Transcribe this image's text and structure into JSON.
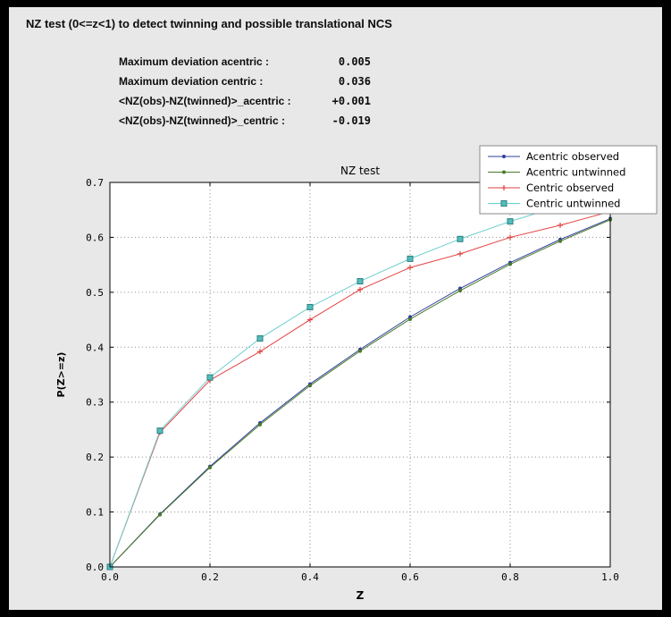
{
  "header": {
    "title": "NZ test (0<=z<1) to detect twinning and possible translational NCS"
  },
  "stats": {
    "rows": [
      {
        "label": "Maximum deviation acentric :",
        "value": "0.005"
      },
      {
        "label": "Maximum deviation centric :",
        "value": "0.036"
      },
      {
        "label": "<NZ(obs)-NZ(twinned)>_acentric :",
        "value": "+0.001"
      },
      {
        "label": "<NZ(obs)-NZ(twinned)>_centric :",
        "value": "-0.019"
      }
    ]
  },
  "chart_data": {
    "type": "line",
    "title": "NZ test",
    "xlabel": "Z",
    "ylabel": "P(Z>=z)",
    "xlim": [
      0.0,
      1.0
    ],
    "ylim": [
      0.0,
      0.7
    ],
    "xticks": [
      0.0,
      0.2,
      0.4,
      0.6,
      0.8,
      1.0
    ],
    "yticks": [
      0.0,
      0.1,
      0.2,
      0.3,
      0.4,
      0.5,
      0.6,
      0.7
    ],
    "grid": true,
    "grid_color": "#909090",
    "plot_bg": "#ffffff",
    "frame_color": "#000000",
    "legend_position": "top-right",
    "x": [
      0.0,
      0.1,
      0.2,
      0.3,
      0.4,
      0.5,
      0.6,
      0.7,
      0.8,
      0.9,
      1.0
    ],
    "series": [
      {
        "name": "Acentric observed",
        "color": "#30409a",
        "marker": "point",
        "values": [
          0.0,
          0.096,
          0.183,
          0.262,
          0.333,
          0.396,
          0.455,
          0.507,
          0.554,
          0.596,
          0.634
        ]
      },
      {
        "name": "Acentric untwinned",
        "color": "#4a7a2a",
        "marker": "point",
        "values": [
          0.0,
          0.095,
          0.181,
          0.259,
          0.33,
          0.393,
          0.451,
          0.503,
          0.551,
          0.593,
          0.632
        ]
      },
      {
        "name": "Centric observed",
        "color": "#e34040",
        "marker": "plus",
        "values": [
          0.0,
          0.245,
          0.34,
          0.392,
          0.45,
          0.505,
          0.545,
          0.57,
          0.6,
          0.622,
          0.647
        ]
      },
      {
        "name": "Centric untwinned",
        "color": "#6fcfcf",
        "marker": "square",
        "marker_fill": "#53bdbd",
        "marker_edge": "#2d7f7f",
        "values": [
          0.0,
          0.248,
          0.345,
          0.416,
          0.473,
          0.52,
          0.561,
          0.597,
          0.629,
          0.657,
          0.683
        ]
      }
    ]
  }
}
